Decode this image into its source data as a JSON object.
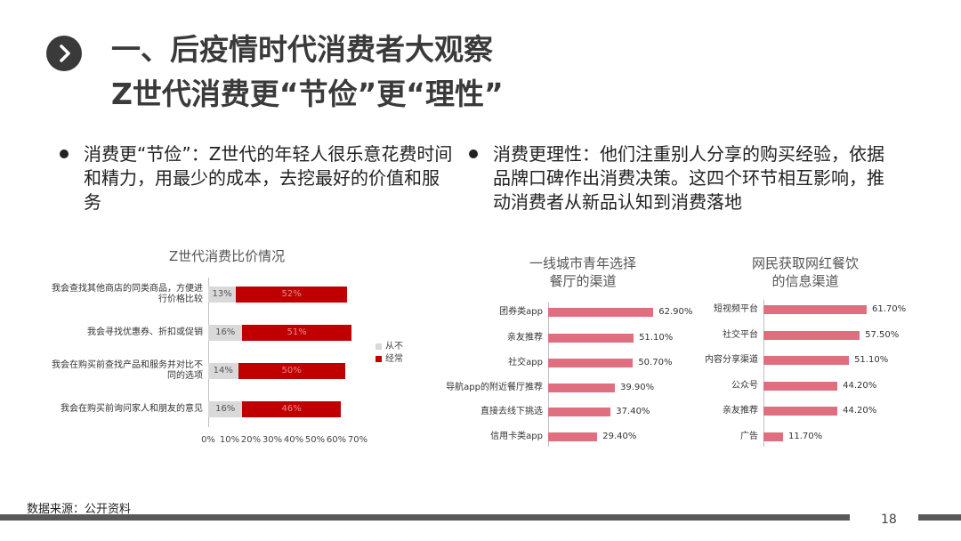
{
  "header": {
    "title": [
      "一、后疫情时代消费者大观察",
      "Z世代消费更“节俭”更“理性”"
    ]
  },
  "bullets": [
    "消费更“节俭”：Z世代的年轻人很乐意花费时间和精力，用最少的成本，去挖最好的价值和服务",
    "消费更理性：他们注重别人分享的购买经验，依据品牌口碑作出消费决策。这四个环节相互影响，推动消费者从新品认知到消费落地"
  ],
  "chart_data": [
    {
      "type": "bar",
      "orientation": "horizontal",
      "stacked": true,
      "title": "Z世代消费比价情况",
      "categories": [
        "我会查找其他商店的同类商品，方便进行价格比较",
        "我会寻找优惠券、折扣或促销",
        "我会在购买前查找产品和服务并对比不同的选项",
        "我会在购买前询问家人和朋友的意见"
      ],
      "series": [
        {
          "name": "从不",
          "color": "#d9d9d9",
          "values": [
            13,
            16,
            14,
            16
          ],
          "value_labels": [
            "13%",
            "16%",
            "14%",
            "16%"
          ]
        },
        {
          "name": "经常",
          "color": "#c00000",
          "values": [
            52,
            51,
            50,
            46
          ],
          "value_labels": [
            "52%",
            "51%",
            "50%",
            "46%"
          ]
        }
      ],
      "xlim": [
        0,
        70
      ],
      "xticks": [
        {
          "value": 0,
          "label": "0%"
        },
        {
          "value": 10,
          "label": "10%"
        },
        {
          "value": 20,
          "label": "20%"
        },
        {
          "value": 30,
          "label": "30%"
        },
        {
          "value": 40,
          "label": "40%"
        },
        {
          "value": 50,
          "label": "50%"
        },
        {
          "value": 60,
          "label": "60%"
        },
        {
          "value": 70,
          "label": "70%"
        }
      ],
      "legend": "right"
    },
    {
      "type": "bar",
      "orientation": "horizontal",
      "title": "一线城市青年选择餐厅的渠道",
      "color": "#df6f7f",
      "categories": [
        "团券类app",
        "亲友推荐",
        "社交app",
        "导航app的附近餐厅推荐",
        "直接去线下挑选",
        "信用卡类app"
      ],
      "values": [
        62.9,
        51.1,
        50.7,
        39.9,
        37.4,
        29.4
      ],
      "value_labels": [
        "62.90%",
        "51.10%",
        "50.70%",
        "39.90%",
        "37.40%",
        "29.40%"
      ]
    },
    {
      "type": "bar",
      "orientation": "horizontal",
      "title": "网民获取网红餐饮的信息渠道",
      "color": "#df6f7f",
      "categories": [
        "短视频平台",
        "社交平台",
        "内容分享渠道",
        "公众号",
        "亲友推荐",
        "广告"
      ],
      "values": [
        61.7,
        57.5,
        51.1,
        44.2,
        44.2,
        11.7
      ],
      "value_labels": [
        "61.70%",
        "57.50%",
        "51.10%",
        "44.20%",
        "44.20%",
        "11.70%"
      ]
    }
  ],
  "footer": {
    "source": "数据来源：公开资料",
    "page": 18
  }
}
